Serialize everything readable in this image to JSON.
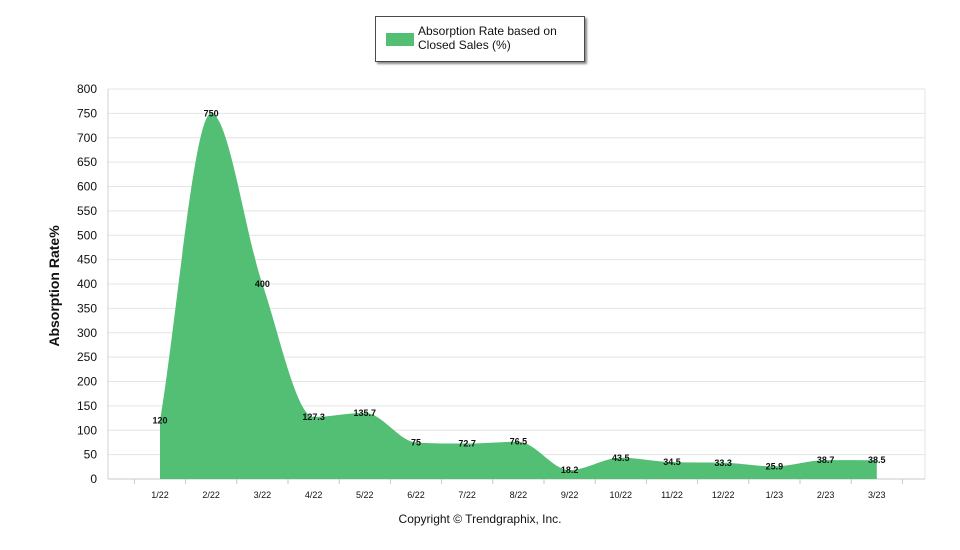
{
  "chart_data": {
    "type": "area",
    "categories": [
      "1/22",
      "2/22",
      "3/22",
      "4/22",
      "5/22",
      "6/22",
      "7/22",
      "8/22",
      "9/22",
      "10/22",
      "11/22",
      "12/22",
      "1/23",
      "2/23",
      "3/23"
    ],
    "series": [
      {
        "name": "Absorption Rate based on Closed Sales (%)",
        "values": [
          120,
          750,
          400,
          127.3,
          135.7,
          75,
          72.7,
          76.5,
          18.2,
          43.5,
          34.5,
          33.3,
          25.9,
          38.7,
          38.5
        ],
        "labels": [
          "120",
          "750",
          "400",
          "127.3",
          "135.7",
          "75",
          "72.7",
          "76.5",
          "18.2",
          "43.5",
          "34.5",
          "33.3",
          "25.9",
          "38.7",
          "38.5"
        ],
        "color": "#52bf75"
      }
    ],
    "ylabel": "Absorption Rate%",
    "xlabel": "",
    "ylim": [
      0,
      800
    ],
    "yticks": [
      "0",
      "50",
      "100",
      "150",
      "200",
      "250",
      "300",
      "350",
      "400",
      "450",
      "500",
      "550",
      "600",
      "650",
      "700",
      "750",
      "800"
    ],
    "grid": true,
    "legend_position": "top-center",
    "footer": "Copyright © Trendgraphix, Inc."
  }
}
